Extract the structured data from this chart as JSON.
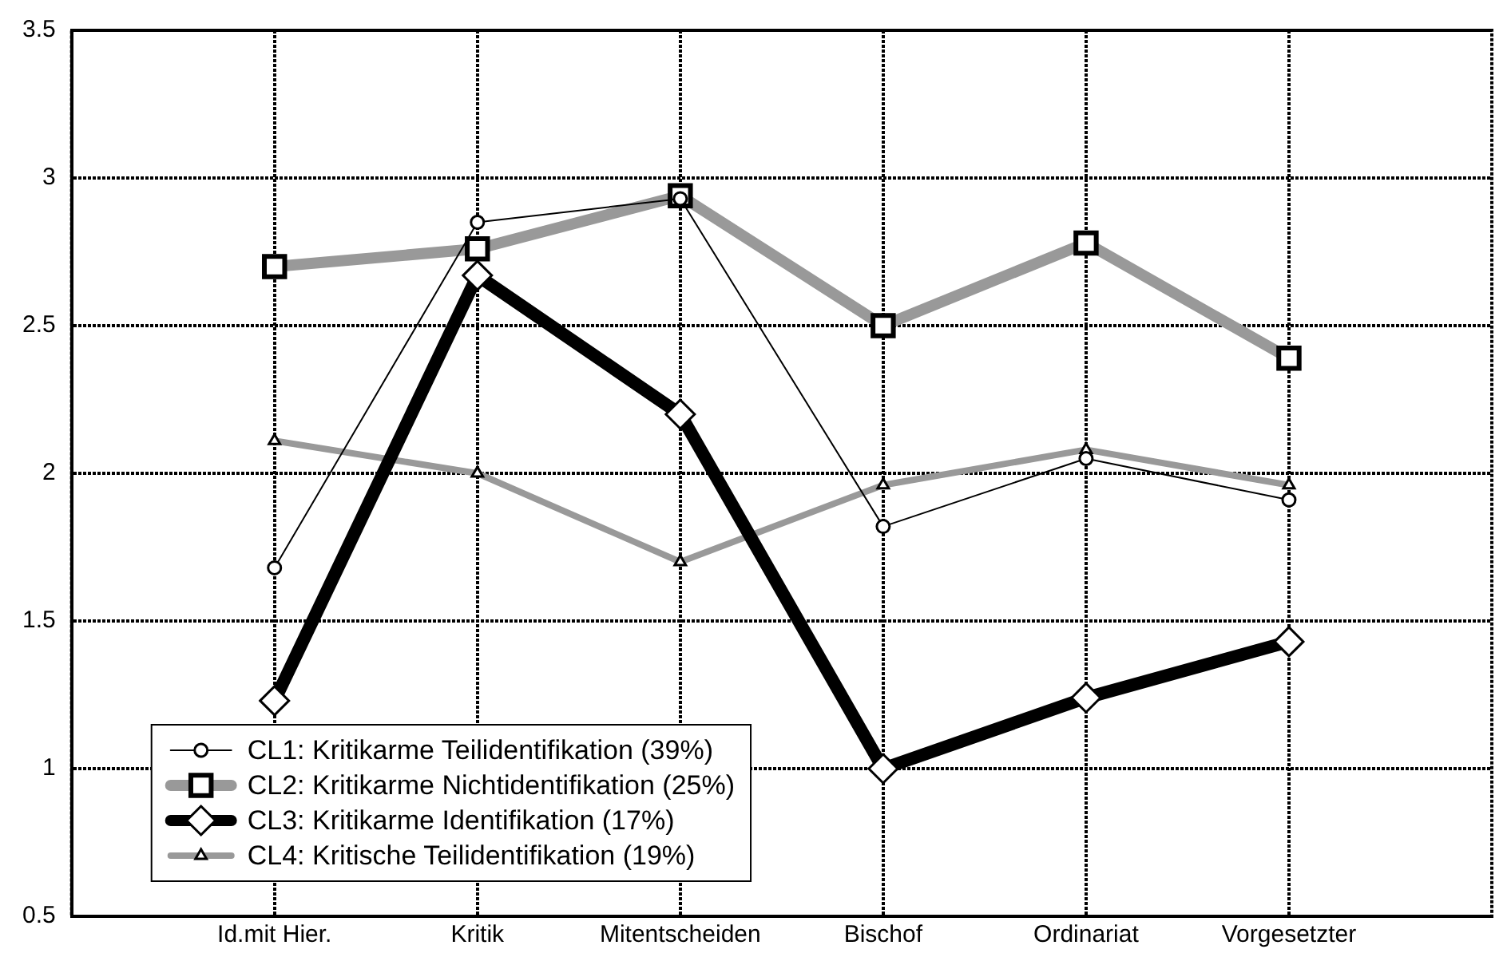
{
  "chart_data": {
    "type": "line",
    "categories": [
      "Id.mit Hier.",
      "Kritik",
      "Mitentscheiden",
      "Bischof",
      "Ordinariat",
      "Vorgesetzter"
    ],
    "series": [
      {
        "name": "CL1: Kritikarme Teilidentifikation (39%)",
        "color": "#000000",
        "marker": "circle",
        "values": [
          1.68,
          2.85,
          2.93,
          1.82,
          2.05,
          1.91
        ]
      },
      {
        "name": "CL2: Kritikarme Nichtidentifikation (25%)",
        "color": "#999999",
        "marker": "square",
        "values": [
          2.7,
          2.76,
          2.94,
          2.5,
          2.78,
          2.39
        ]
      },
      {
        "name": "CL3: Kritikarme Identifikation (17%)",
        "color": "#000000",
        "marker": "diamond",
        "values": [
          1.23,
          2.67,
          2.2,
          1.0,
          1.24,
          1.43
        ]
      },
      {
        "name": "CL4: Kritische Teilidentifikation (19%)",
        "color": "#999999",
        "marker": "triangle",
        "values": [
          2.11,
          2.0,
          1.7,
          1.96,
          2.08,
          1.96
        ]
      }
    ],
    "ylim": [
      0.5,
      3.5
    ],
    "yticks": [
      0.5,
      1,
      1.5,
      2,
      2.5,
      3,
      3.5
    ],
    "grid": true,
    "legend": "bottom left",
    "line_style": "solid"
  }
}
